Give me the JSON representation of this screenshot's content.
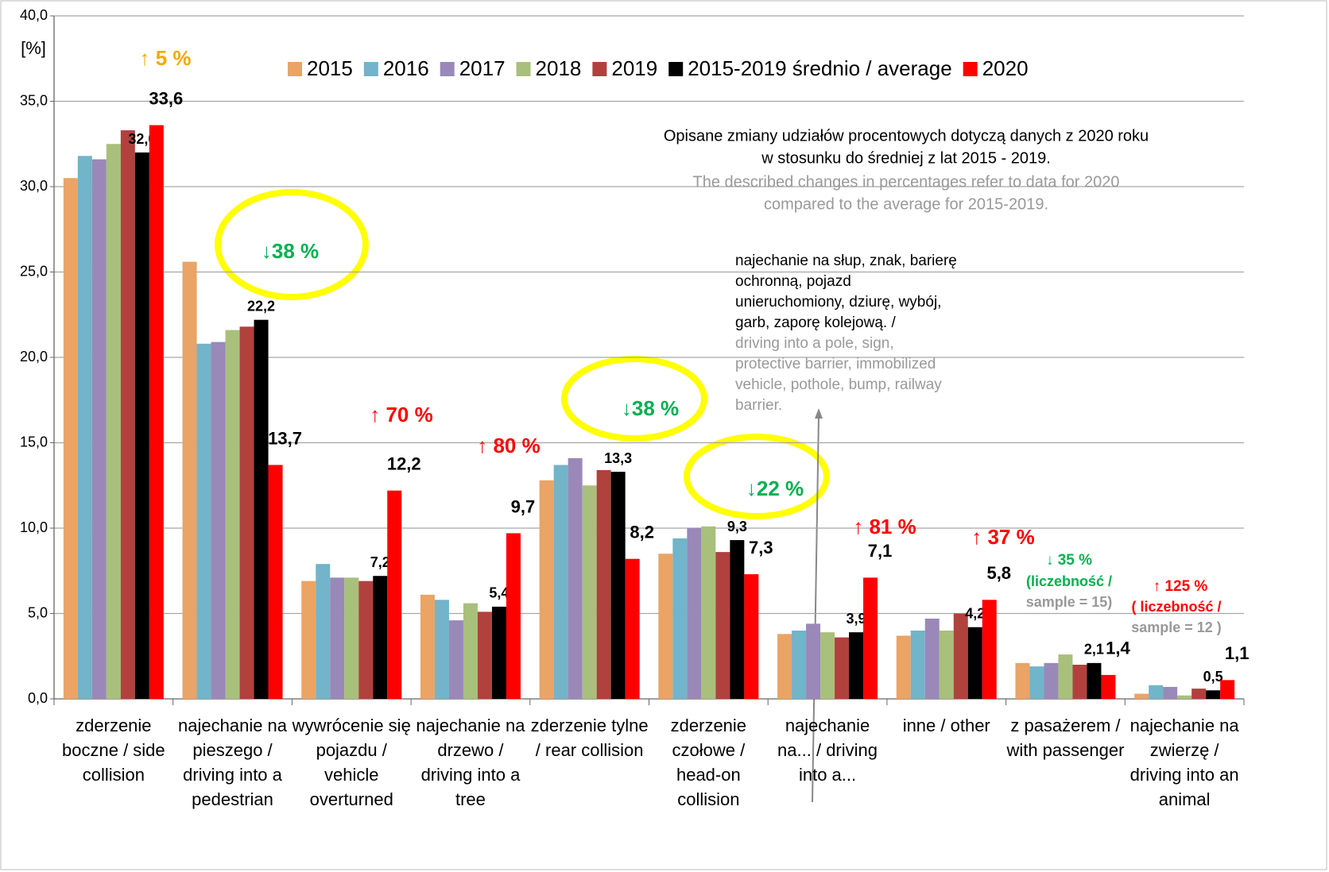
{
  "chart_data": {
    "type": "bar",
    "y_label": "[%]",
    "categories": [
      "zderzenie boczne / side collision",
      "najechanie na pieszego / driving into a pedestrian",
      "wywrócenie się pojazdu / vehicle overturned",
      "najechanie na drzewo / driving into a tree",
      "zderzenie tylne / rear collision",
      "zderzenie czołowe / head-on collision",
      "najechanie na... / driving into a...",
      "inne / other",
      "z pasażerem / with passenger",
      "najechanie na zwierzę / driving into an animal"
    ],
    "series": [
      {
        "name": "2015",
        "color": "#e9a466",
        "values": [
          30.5,
          25.6,
          6.9,
          6.1,
          12.8,
          8.5,
          3.8,
          3.7,
          2.1,
          0.3
        ]
      },
      {
        "name": "2016",
        "color": "#72b4c9",
        "values": [
          31.8,
          20.8,
          7.9,
          5.8,
          13.7,
          9.4,
          4.0,
          4.0,
          1.9,
          0.8
        ]
      },
      {
        "name": "2017",
        "color": "#9a88b9",
        "values": [
          31.6,
          20.9,
          7.1,
          4.6,
          14.1,
          10.0,
          4.4,
          4.7,
          2.1,
          0.7
        ]
      },
      {
        "name": "2018",
        "color": "#a8c07b",
        "values": [
          32.5,
          21.6,
          7.1,
          5.6,
          12.5,
          10.1,
          3.9,
          4.0,
          2.6,
          0.2
        ]
      },
      {
        "name": "2019",
        "color": "#b1413d",
        "values": [
          33.3,
          21.8,
          6.9,
          5.1,
          13.4,
          8.6,
          3.6,
          5.0,
          2.0,
          0.6
        ]
      },
      {
        "name": "2015-2019 średnio / average",
        "color": "#000000",
        "values": [
          32.0,
          22.2,
          7.2,
          5.4,
          13.3,
          9.3,
          3.9,
          4.2,
          2.1,
          0.5
        ],
        "value_labels": [
          "32,0",
          "22,2",
          "7,2",
          "5,4",
          "13,3",
          "9,3",
          "3,9",
          "4,2",
          "2,1",
          "0,5"
        ]
      },
      {
        "name": "2020",
        "color": "#ff0000",
        "values": [
          33.6,
          13.7,
          12.2,
          9.7,
          8.2,
          7.3,
          7.1,
          5.8,
          1.4,
          1.1
        ],
        "value_labels": [
          "33,6",
          "13,7",
          "12,2",
          "9,7",
          "8,2",
          "7,3",
          "7,1",
          "5,8",
          "1,4",
          "1,1"
        ]
      }
    ],
    "ylim": [
      0,
      40
    ],
    "yticks": [
      {
        "value": 0,
        "label": "0,0"
      },
      {
        "value": 5,
        "label": "5,0"
      },
      {
        "value": 10,
        "label": "10,0"
      },
      {
        "value": 15,
        "label": "15,0"
      },
      {
        "value": 20,
        "label": "20,0"
      },
      {
        "value": 25,
        "label": "25,0"
      },
      {
        "value": 30,
        "label": "30,0"
      },
      {
        "value": 35,
        "label": "35,0"
      },
      {
        "value": 40,
        "label": "40,0"
      }
    ],
    "grid": true,
    "annotations": [
      {
        "text": "↑ 5 %",
        "color": "#f5a800"
      },
      {
        "text": "↓38 %",
        "color": "#00b050"
      },
      {
        "text": "↑ 70 %",
        "color": "#ff0000"
      },
      {
        "text": "↑ 80 %",
        "color": "#ff0000"
      },
      {
        "text": "↓38 %",
        "color": "#00b050"
      },
      {
        "text": "↓22 %",
        "color": "#00b050"
      },
      {
        "text": "↑ 81 %",
        "color": "#ff0000"
      },
      {
        "text": "↑ 37 %",
        "color": "#ff0000"
      },
      {
        "text": "↓ 35 %",
        "color": "#00b050"
      },
      {
        "text": "↑ 125 %",
        "color": "#ff0000"
      }
    ],
    "sample_notes": [
      {
        "count": "(liczebność /",
        "sample": "sample = 15)",
        "color": "#00b050"
      },
      {
        "count": "( liczebność /",
        "sample": "sample = 12 )",
        "color": "#ff0000"
      }
    ],
    "note": {
      "pl": [
        "Opisane zmiany udziałów procentowych dotyczą danych z 2020 roku",
        "w stosunku do średniej z lat 2015 - 2019."
      ],
      "en": [
        "The described changes in percentages refer to data for 2020",
        "compared to the average for 2015-2019."
      ]
    },
    "category_note": {
      "pl": [
        "najechanie na słup, znak, barierę",
        "ochronną, pojazd",
        "unieruchomiony, dziurę, wybój,",
        "garb, zaporę kolejową. /"
      ],
      "en": [
        "driving into a pole, sign,",
        "protective barrier, immobilized",
        "vehicle, pothole, bump, railway",
        "barrier."
      ]
    }
  }
}
